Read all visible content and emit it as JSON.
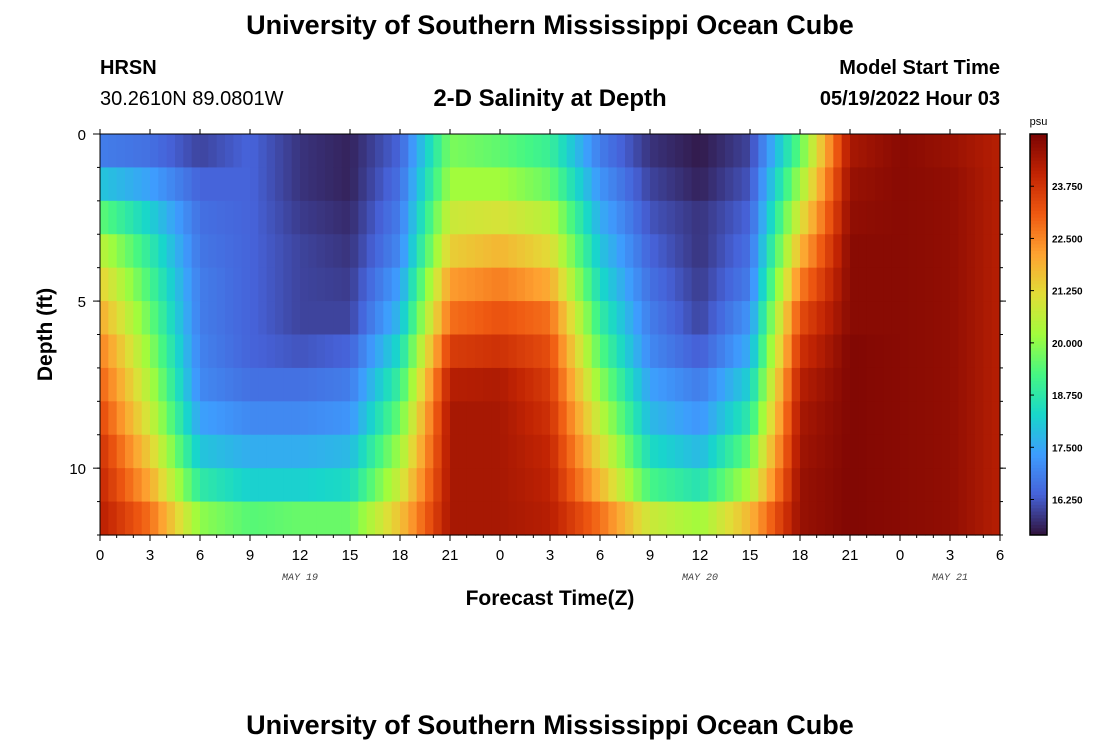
{
  "header": {
    "title": "University of Southern Mississippi Ocean Cube",
    "station": "HRSN",
    "coords": "30.2610N  89.0801W",
    "subtitle": "2-D Salinity at Depth",
    "model_label": "Model Start Time",
    "model_time": "05/19/2022 Hour 03"
  },
  "footer": {
    "title": "University of Southern Mississippi Ocean Cube"
  },
  "chart_data": {
    "type": "heatmap",
    "xlabel": "Forecast Time(Z)",
    "ylabel": "Depth (ft)",
    "x_tick_labels": [
      "0",
      "3",
      "6",
      "9",
      "12",
      "15",
      "18",
      "21",
      "0",
      "3",
      "6",
      "9",
      "12",
      "15",
      "18",
      "21",
      "0",
      "3",
      "6"
    ],
    "x_range_hours": [
      0,
      54
    ],
    "month_labels": [
      {
        "text": "MAY 19",
        "hour": 12
      },
      {
        "text": "MAY 20",
        "hour": 36
      },
      {
        "text": "MAY 21",
        "hour": 51
      }
    ],
    "y_tick_labels": [
      "0",
      "5",
      "10"
    ],
    "y_range_ft": [
      0,
      12
    ],
    "colorbar": {
      "unit": "psu",
      "ticks": [
        "16.250",
        "17.500",
        "18.750",
        "20.000",
        "21.250",
        "22.500",
        "23.750"
      ],
      "tick_values": [
        16.25,
        17.5,
        18.75,
        20.0,
        21.25,
        22.5,
        23.75
      ],
      "range": [
        15.4,
        25.0
      ],
      "colormap": "turbo"
    },
    "depth_levels_ft": [
      0,
      1,
      2,
      3,
      4,
      5,
      6,
      7,
      8,
      9,
      10,
      11
    ],
    "time_hours": [
      0,
      3,
      6,
      9,
      12,
      15,
      18,
      21,
      24,
      27,
      30,
      33,
      36,
      39,
      42,
      45,
      48,
      51,
      54
    ],
    "salinity_psu": [
      [
        16.8,
        16.6,
        16.0,
        16.4,
        15.8,
        15.6,
        16.4,
        19.8,
        19.5,
        19.0,
        16.8,
        15.8,
        15.5,
        16.0,
        19.5,
        24.4,
        24.8,
        24.6,
        24.2
      ],
      [
        18.0,
        17.4,
        16.4,
        16.4,
        15.8,
        15.6,
        16.6,
        20.2,
        20.2,
        19.6,
        17.2,
        16.0,
        15.6,
        16.2,
        20.2,
        24.6,
        24.8,
        24.7,
        24.2
      ],
      [
        19.5,
        18.2,
        16.6,
        16.4,
        15.9,
        15.7,
        16.8,
        20.8,
        21.0,
        20.5,
        17.6,
        16.2,
        15.8,
        16.4,
        21.0,
        24.7,
        24.8,
        24.7,
        24.2
      ],
      [
        20.6,
        18.8,
        16.7,
        16.4,
        16.0,
        15.8,
        17.0,
        21.4,
        21.8,
        21.2,
        18.0,
        16.4,
        15.8,
        16.6,
        21.8,
        24.8,
        24.8,
        24.7,
        24.2
      ],
      [
        21.4,
        19.2,
        16.8,
        16.4,
        16.0,
        15.9,
        17.4,
        22.2,
        22.6,
        22.0,
        18.4,
        16.6,
        15.9,
        16.8,
        22.6,
        24.8,
        24.8,
        24.7,
        24.2
      ],
      [
        22.0,
        19.6,
        16.8,
        16.4,
        16.0,
        16.0,
        17.8,
        22.8,
        23.2,
        22.8,
        18.9,
        16.8,
        16.0,
        17.2,
        23.3,
        24.8,
        24.8,
        24.7,
        24.2
      ],
      [
        22.6,
        20.0,
        16.9,
        16.4,
        16.2,
        16.4,
        18.4,
        23.6,
        23.8,
        23.3,
        19.4,
        17.0,
        16.3,
        17.6,
        23.8,
        24.9,
        24.8,
        24.7,
        24.2
      ],
      [
        23.0,
        20.4,
        17.0,
        16.6,
        16.6,
        16.8,
        19.0,
        24.2,
        24.3,
        23.6,
        20.0,
        17.4,
        16.8,
        18.2,
        24.2,
        24.9,
        24.8,
        24.7,
        24.2
      ],
      [
        23.4,
        20.8,
        17.4,
        17.0,
        17.0,
        17.2,
        19.6,
        24.4,
        24.4,
        23.8,
        20.6,
        17.8,
        17.2,
        18.8,
        24.4,
        24.9,
        24.8,
        24.7,
        24.2
      ],
      [
        23.8,
        21.4,
        18.0,
        17.6,
        17.6,
        17.8,
        20.2,
        24.4,
        24.4,
        24.0,
        21.2,
        18.4,
        17.8,
        19.6,
        24.5,
        24.9,
        24.8,
        24.7,
        24.2
      ],
      [
        24.0,
        22.0,
        18.8,
        18.2,
        18.2,
        18.4,
        20.8,
        24.4,
        24.4,
        24.1,
        21.8,
        19.2,
        18.6,
        20.4,
        24.6,
        24.9,
        24.8,
        24.7,
        24.2
      ],
      [
        24.2,
        22.8,
        20.0,
        19.4,
        19.6,
        19.6,
        21.6,
        24.4,
        24.4,
        24.2,
        22.8,
        20.8,
        20.2,
        21.8,
        24.6,
        24.9,
        24.8,
        24.7,
        24.2
      ]
    ]
  }
}
